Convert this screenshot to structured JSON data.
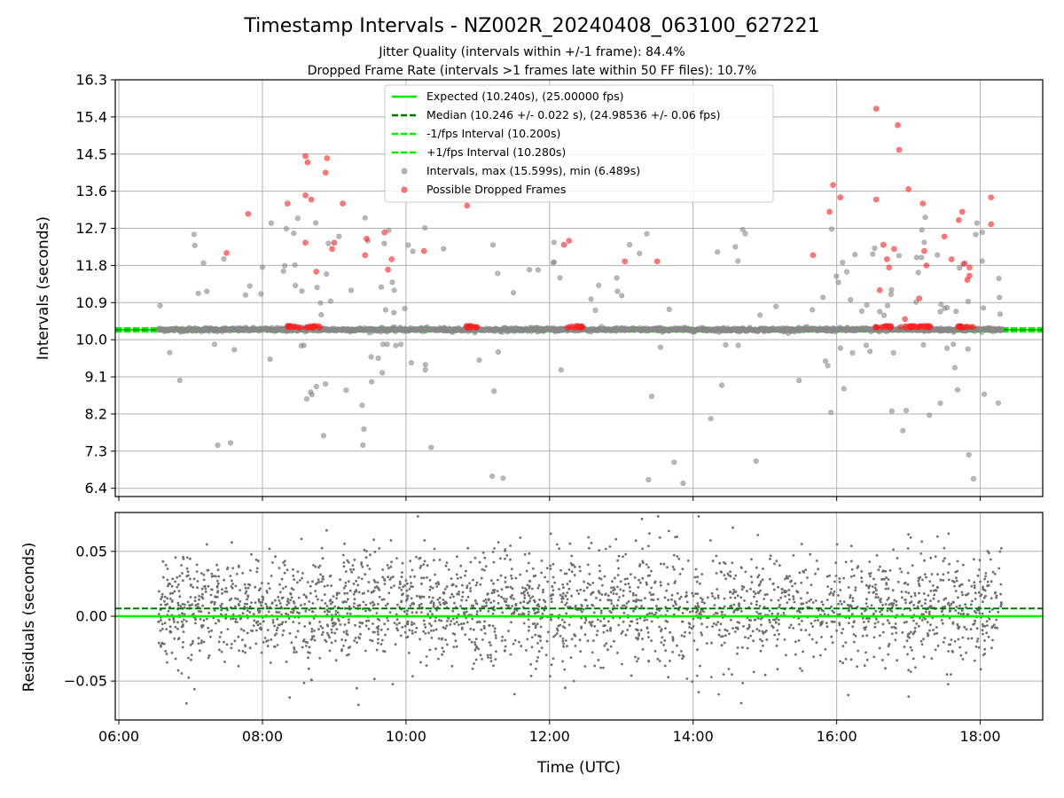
{
  "chart_data": [
    {
      "type": "scatter",
      "title": "Timestamp Intervals - NZ002R_20240408_063100_627221",
      "subtitle_lines": [
        "Jitter Quality (intervals within +/-1 frame): 84.4%",
        "Dropped Frame Rate (intervals >1 frames late within 50 FF files): 10.7%"
      ],
      "ylabel": "Intervals (seconds)",
      "ylim": [
        6.2,
        16.3
      ],
      "xlim": [
        5.95,
        18.87
      ],
      "y_ticks": [
        6.4,
        7.3,
        8.2,
        9.1,
        10.0,
        10.9,
        11.8,
        12.7,
        13.6,
        14.5,
        15.4,
        16.3
      ],
      "y_tick_labels": [
        "6.4",
        "7.3",
        "8.2",
        "9.1",
        "10.0",
        "10.9",
        "11.8",
        "12.7",
        "13.6",
        "14.5",
        "15.4",
        "16.3"
      ],
      "x_ticks": [
        6,
        8,
        10,
        12,
        14,
        16,
        18
      ],
      "grid": true,
      "legend_position": "top-center",
      "legend": [
        "Expected (10.240s), (25.00000 fps)",
        "Median (10.246 +/- 0.022 s), (24.98536 +/- 0.06 fps)",
        "-1/fps Interval (10.200s)",
        "+1/fps Interval (10.280s)",
        "Intervals, max (15.599s), min (6.489s)",
        "Possible Dropped Frames"
      ],
      "reference_lines": {
        "expected": 10.24,
        "median": 10.246,
        "minus_one_frame": 10.2,
        "plus_one_frame": 10.28
      },
      "series_colors": {
        "expected": "#00ee00",
        "median": "#007700",
        "intervals": "#888888",
        "dropped": "#ff2020"
      },
      "interval_range": [
        6.489,
        15.599
      ],
      "data_time_range": [
        6.55,
        18.3
      ],
      "dropped_frame_clusters_x": [
        8.45,
        8.7,
        10.95,
        12.35,
        16.65,
        17.0,
        17.2,
        17.8
      ],
      "dropped_frames": [
        [
          7.5,
          12.1
        ],
        [
          7.8,
          13.05
        ],
        [
          8.35,
          13.3
        ],
        [
          8.6,
          14.45
        ],
        [
          8.63,
          14.3
        ],
        [
          8.6,
          13.5
        ],
        [
          8.68,
          13.4
        ],
        [
          8.6,
          12.35
        ],
        [
          8.75,
          11.65
        ],
        [
          8.88,
          14.05
        ],
        [
          8.9,
          14.4
        ],
        [
          8.97,
          12.2
        ],
        [
          9.0,
          12.35
        ],
        [
          9.12,
          13.3
        ],
        [
          9.45,
          12.45
        ],
        [
          9.43,
          12.05
        ],
        [
          9.75,
          11.7
        ],
        [
          9.7,
          12.6
        ],
        [
          9.8,
          11.95
        ],
        [
          10.25,
          12.15
        ],
        [
          10.85,
          13.25
        ],
        [
          12.2,
          12.3
        ],
        [
          12.27,
          12.4
        ],
        [
          13.05,
          11.9
        ],
        [
          13.5,
          11.9
        ],
        [
          15.67,
          12.05
        ],
        [
          15.9,
          13.1
        ],
        [
          15.95,
          13.75
        ],
        [
          16.05,
          13.45
        ],
        [
          16.55,
          15.6
        ],
        [
          16.55,
          13.4
        ],
        [
          16.6,
          11.2
        ],
        [
          16.65,
          12.3
        ],
        [
          16.7,
          11.95
        ],
        [
          16.73,
          11.75
        ],
        [
          16.8,
          12.2
        ],
        [
          16.85,
          15.2
        ],
        [
          16.87,
          14.6
        ],
        [
          16.95,
          10.5
        ],
        [
          17.0,
          13.65
        ],
        [
          17.15,
          11.0
        ],
        [
          17.2,
          13.3
        ],
        [
          17.22,
          12.15
        ],
        [
          17.25,
          11.8
        ],
        [
          17.5,
          12.5
        ],
        [
          17.6,
          11.95
        ],
        [
          17.7,
          12.9
        ],
        [
          17.75,
          13.1
        ],
        [
          17.78,
          11.85
        ],
        [
          17.85,
          11.75
        ],
        [
          17.85,
          11.55
        ],
        [
          17.82,
          11.45
        ],
        [
          18.15,
          13.45
        ],
        [
          18.15,
          12.8
        ]
      ]
    },
    {
      "type": "scatter",
      "ylabel": "Residuals (seconds)",
      "xlabel": "Time (UTC)",
      "ylim": [
        -0.08,
        0.08
      ],
      "xlim": [
        5.95,
        18.87
      ],
      "y_ticks": [
        -0.05,
        0.0,
        0.05
      ],
      "y_tick_labels": [
        "−0.05",
        "0.00",
        "0.05"
      ],
      "x_ticks": [
        6,
        8,
        10,
        12,
        14,
        16,
        18
      ],
      "x_tick_labels": [
        "06:00",
        "08:00",
        "10:00",
        "12:00",
        "14:00",
        "16:00",
        "18:00"
      ],
      "grid": true,
      "reference_lines": {
        "zero": 0.0,
        "median_offset": 0.006
      },
      "residual_spread": 0.022,
      "residual_range": [
        -0.077,
        0.077
      ],
      "data_time_range": [
        6.55,
        18.3
      ]
    }
  ]
}
